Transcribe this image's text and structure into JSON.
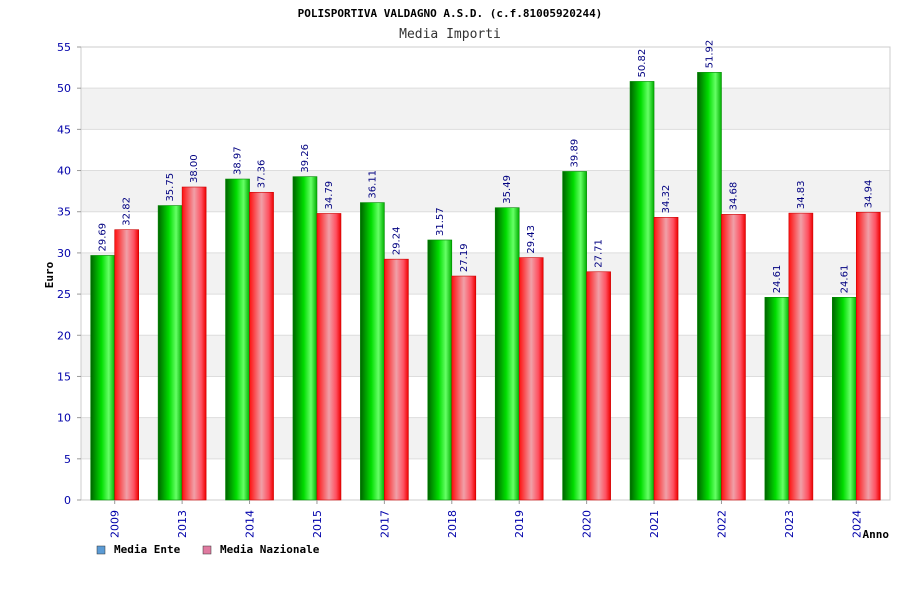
{
  "chart_data": {
    "type": "bar",
    "title": "POLISPORTIVA VALDAGNO A.S.D. (c.f.81005920244)",
    "subtitle": "Media Importi",
    "xlabel": "Anno",
    "ylabel": "Euro",
    "ylim": [
      0,
      55
    ],
    "ystep": 5,
    "grid": "horizontal bands",
    "legend_position": "bottom-left",
    "categories": [
      "2009",
      "2013",
      "2014",
      "2015",
      "2017",
      "2018",
      "2019",
      "2020",
      "2021",
      "2022",
      "2023",
      "2024"
    ],
    "series": [
      {
        "name": "Media Ente",
        "legend_color": "#5b9bd5",
        "color": "#00c000",
        "values": [
          29.69,
          35.75,
          38.97,
          39.26,
          36.11,
          31.57,
          35.49,
          39.89,
          50.82,
          51.92,
          24.61,
          24.61
        ],
        "labels": [
          "29.69",
          "35.75",
          "38.97",
          "39.26",
          "36.11",
          "31.57",
          "35.49",
          "39.89",
          "50.82",
          "51.92",
          "24.61",
          "24.61"
        ]
      },
      {
        "name": "Media Nazionale",
        "legend_color": "#e07aa0",
        "color": "#ff0000",
        "values": [
          32.82,
          38.0,
          37.36,
          34.79,
          29.24,
          27.19,
          29.43,
          27.71,
          34.32,
          34.68,
          34.83,
          34.94
        ],
        "labels": [
          "32.82",
          "38.00",
          "37.36",
          "34.79",
          "29.24",
          "27.19",
          "29.43",
          "27.71",
          "34.32",
          "34.68",
          "34.83",
          "34.94"
        ]
      }
    ]
  }
}
